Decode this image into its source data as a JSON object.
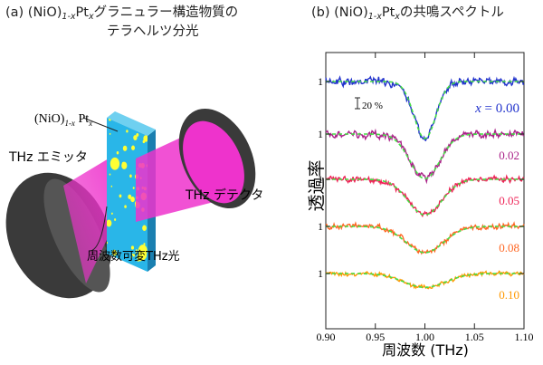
{
  "panel_a": {
    "title_prefix": "(a) (NiO)",
    "title_sub": "1-x",
    "title_mid": "Pt",
    "title_sub2": "x",
    "title_suffix": "グラニュラー構造物質の",
    "title_line2": "テラヘルツ分光",
    "sample_label_prefix": "(NiO)",
    "sample_label_sub": "1-x",
    "sample_label_mid": " Pt",
    "sample_label_sub2": "x",
    "emitter_label": "THz エミッタ",
    "detector_label": "THz デテクタ",
    "beam_label": "周波数可変THz光",
    "colors": {
      "sample": "#29b6e8",
      "particles": "#ffff33",
      "beam": "#ee33cc",
      "domes": "#3a3a3a"
    }
  },
  "panel_b": {
    "title_prefix": "(b) (NiO)",
    "title_sub": "1-x",
    "title_mid": "Pt",
    "title_sub2": "x",
    "title_suffix": "の共鳴スペクトル"
  },
  "chart_data": {
    "type": "line",
    "xlabel": "周波数 (THz)",
    "ylabel": "透過率",
    "xlim": [
      0.9,
      1.1
    ],
    "xticks": [
      "0.90",
      "0.95",
      "1.00",
      "1.05",
      "1.10"
    ],
    "scale_bar_label": "20 %",
    "legend_var": "x",
    "series": [
      {
        "name": "= 0.00",
        "baseline": 1,
        "dip_center": 1.0,
        "dip_depth": 0.37,
        "dip_width": 0.011,
        "color": "#2233cc",
        "fit_color": "#44dd44",
        "tick_label": "1"
      },
      {
        "name": "0.02",
        "baseline": 1,
        "dip_center": 1.0,
        "dip_depth": 0.29,
        "dip_width": 0.015,
        "color": "#aa2288",
        "fit_color": "#44dd44",
        "tick_label": "1"
      },
      {
        "name": "0.05",
        "baseline": 1,
        "dip_center": 1.0,
        "dip_depth": 0.23,
        "dip_width": 0.017,
        "color": "#ee2255",
        "fit_color": "#44dd44",
        "tick_label": "1"
      },
      {
        "name": "0.08",
        "baseline": 1,
        "dip_center": 1.0,
        "dip_depth": 0.17,
        "dip_width": 0.019,
        "color": "#ff6622",
        "fit_color": "#44dd44",
        "tick_label": "1"
      },
      {
        "name": "0.10",
        "baseline": 1,
        "dip_center": 1.0,
        "dip_depth": 0.09,
        "dip_width": 0.021,
        "color": "#ff9900",
        "fit_color": "#44dd44",
        "tick_label": "1"
      }
    ]
  }
}
